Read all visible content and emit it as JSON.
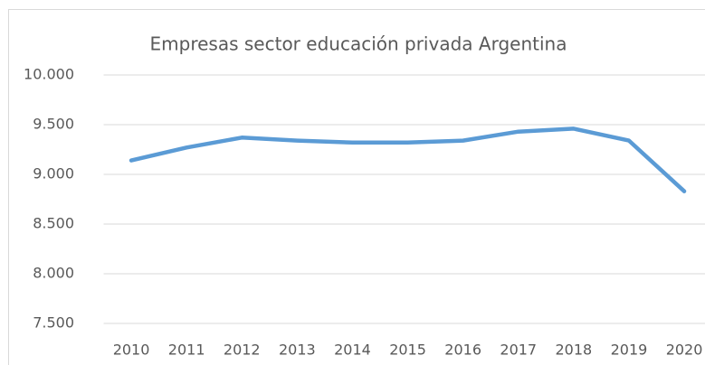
{
  "chart_data": {
    "type": "line",
    "title": "Empresas sector educación privada Argentina",
    "categories": [
      "2010",
      "2011",
      "2012",
      "2013",
      "2014",
      "2015",
      "2016",
      "2017",
      "2018",
      "2019",
      "2020"
    ],
    "series": [
      {
        "name": "Empresas",
        "color": "#5b9bd5",
        "values": [
          9140,
          9270,
          9370,
          9340,
          9320,
          9320,
          9340,
          9430,
          9460,
          9340,
          8830
        ]
      }
    ],
    "ylim": [
      7500,
      10000
    ],
    "yticks": [
      {
        "value": 7500,
        "label": "7.500"
      },
      {
        "value": 8000,
        "label": "8.000"
      },
      {
        "value": 8500,
        "label": "8.500"
      },
      {
        "value": 9000,
        "label": "9.000"
      },
      {
        "value": 9500,
        "label": "9.500"
      },
      {
        "value": 10000,
        "label": "10.000"
      }
    ],
    "grid": true
  }
}
